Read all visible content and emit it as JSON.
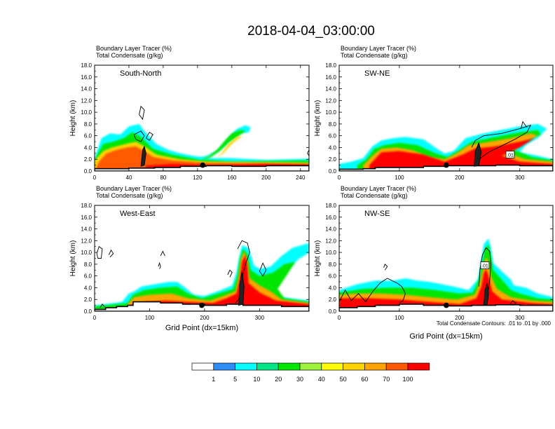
{
  "figure": {
    "title": "2018-04-04_03:00:00",
    "contour_note": "Total Condensate Contours: .01 to .01 by .000",
    "contour_label": ".01"
  },
  "colorbar": {
    "labels": [
      "1",
      "5",
      "10",
      "20",
      "30",
      "40",
      "50",
      "60",
      "70",
      "100"
    ],
    "colors": [
      "#ffffff",
      "#2b8df5",
      "#00ffff",
      "#00e686",
      "#00e600",
      "#9ef23c",
      "#ffff00",
      "#ffd200",
      "#ffa400",
      "#ff5a00",
      "#ff0000"
    ]
  },
  "chart_data": [
    {
      "type": "heatmap",
      "panel": "South-North",
      "title_lines": [
        "Boundary Layer Tracer   (%)",
        "Total Condensate   (g/kg)"
      ],
      "ylabel": "Height (km)",
      "xlabel": "",
      "ylim": [
        0,
        18
      ],
      "yticks": [
        "0.0",
        "2.0",
        "4.0",
        "6.0",
        "8.0",
        "10.0",
        "12.0",
        "14.0",
        "16.0",
        "18.0"
      ],
      "xlim": [
        0,
        250
      ],
      "xticks": [
        "0",
        "40",
        "80",
        "120",
        "160",
        "200",
        "240"
      ],
      "marker": {
        "x": 126,
        "height_km": 1.0
      }
    },
    {
      "type": "heatmap",
      "panel": "SW-NE",
      "title_lines": [
        "Boundary Layer Tracer   (%)",
        "Total Condensate   (g/kg)"
      ],
      "ylabel": "Height (km)",
      "xlabel": "",
      "ylim": [
        0,
        18
      ],
      "yticks": [
        "0.0",
        "2.0",
        "4.0",
        "6.0",
        "8.0",
        "10.0",
        "12.0",
        "14.0",
        "16.0",
        "18.0"
      ],
      "xlim": [
        0,
        355
      ],
      "xticks": [
        "0",
        "100",
        "200",
        "300"
      ],
      "marker": {
        "x": 178,
        "height_km": 1.0
      }
    },
    {
      "type": "heatmap",
      "panel": "West-East",
      "title_lines": [
        "Boundary Layer Tracer   (%)",
        "Total Condensate   (g/kg)"
      ],
      "ylabel": "Height (km)",
      "xlabel": "Grid Point (dx=15km)",
      "ylim": [
        0,
        18
      ],
      "yticks": [
        "0.0",
        "2.0",
        "4.0",
        "6.0",
        "8.0",
        "10.0",
        "12.0",
        "14.0",
        "16.0",
        "18.0"
      ],
      "xlim": [
        0,
        390
      ],
      "xticks": [
        "0",
        "100",
        "200",
        "300"
      ],
      "marker": {
        "x": 195,
        "height_km": 1.0
      }
    },
    {
      "type": "heatmap",
      "panel": "NW-SE",
      "title_lines": [
        "Boundary Layer Tracer   (%)",
        "Total Condensate   (g/kg)"
      ],
      "ylabel": "Height (km)",
      "xlabel": "Grid Point (dx=15km)",
      "ylim": [
        0,
        18
      ],
      "yticks": [
        "0.0",
        "2.0",
        "4.0",
        "6.0",
        "8.0",
        "10.0",
        "12.0",
        "14.0",
        "16.0",
        "18.0"
      ],
      "xlim": [
        0,
        355
      ],
      "xticks": [
        "0",
        "100",
        "200",
        "300"
      ],
      "marker": {
        "x": 178,
        "height_km": 1.0
      }
    }
  ]
}
